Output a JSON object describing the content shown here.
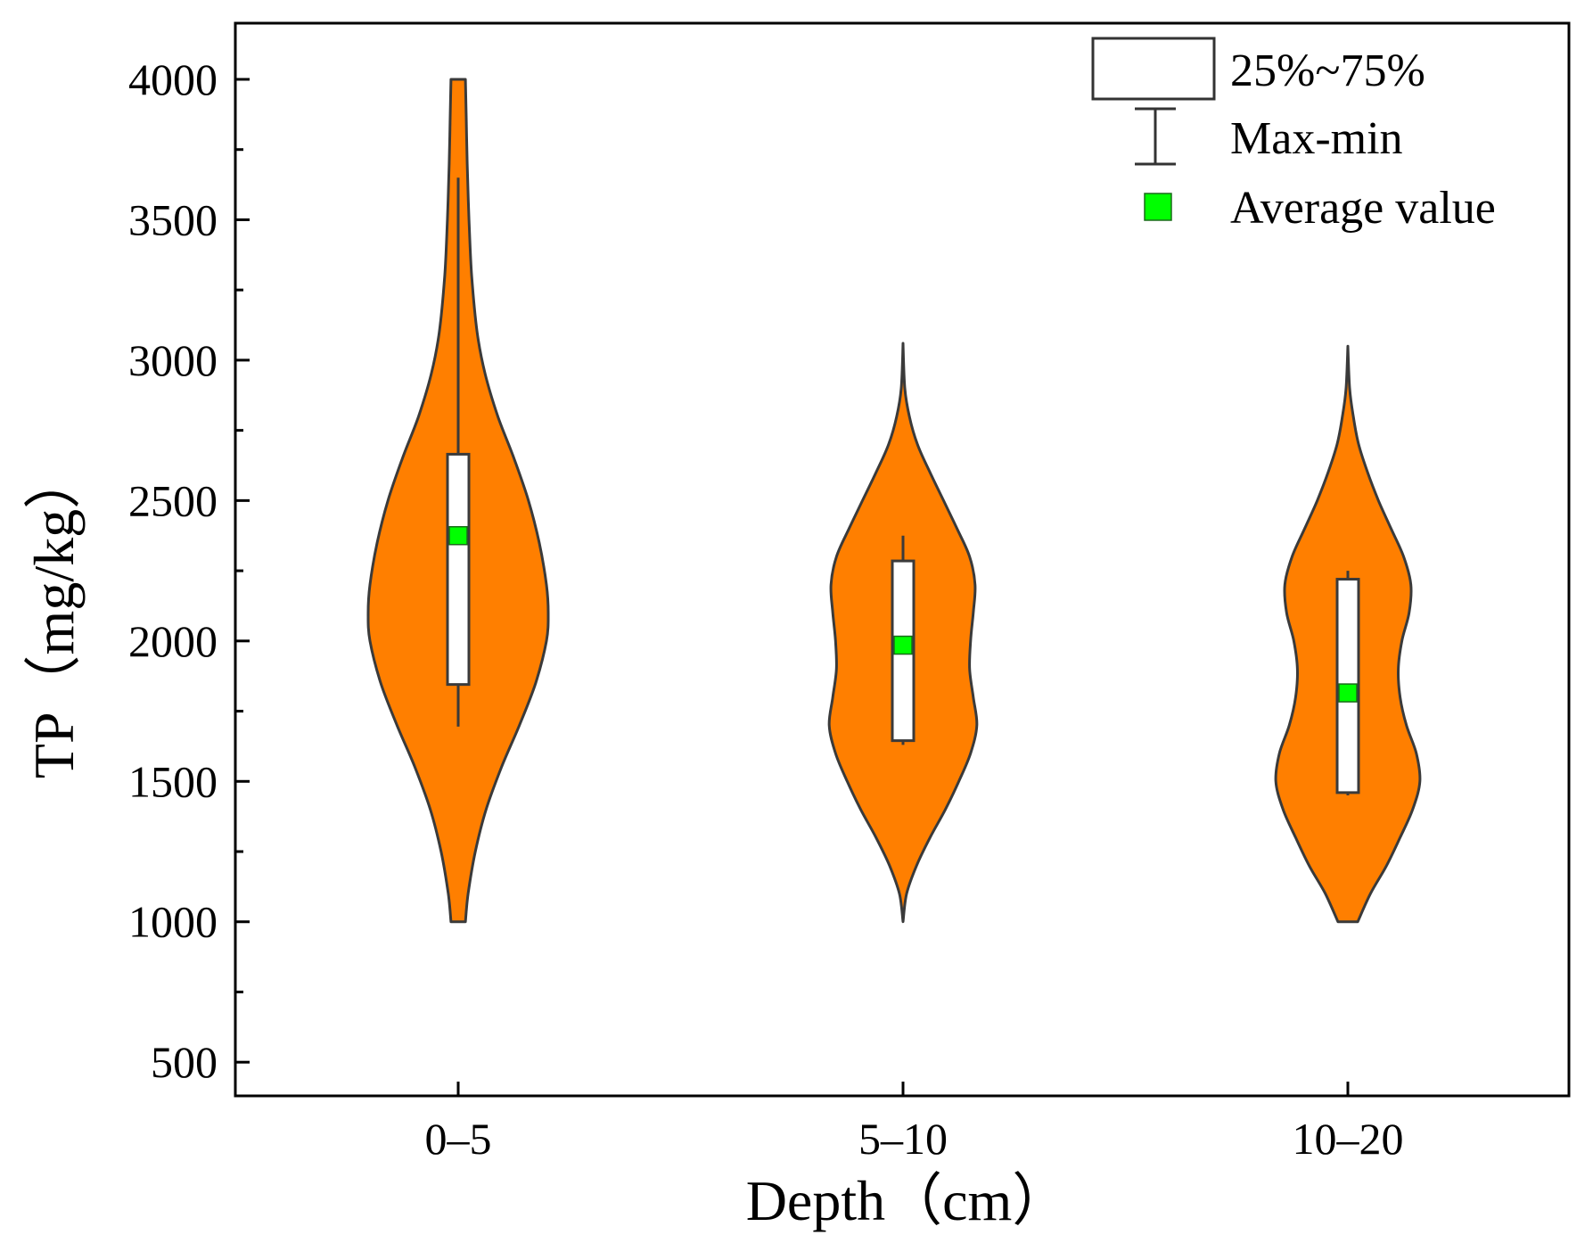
{
  "chart_data": {
    "type": "violin",
    "categories": [
      "0–5",
      "5–10",
      "10–20"
    ],
    "xlabel": "Depth（cm）",
    "ylabel": "TP（mg/kg）",
    "ylim": [
      380,
      4200
    ],
    "y_ticks": [
      500,
      1000,
      1500,
      2000,
      2500,
      3000,
      3500,
      4000
    ],
    "y_tick_labels": [
      "500",
      "1000",
      "1500",
      "2000",
      "2500",
      "3000",
      "3500",
      "4000"
    ],
    "series": [
      {
        "name": "0–5",
        "q1": 1845,
        "q3": 2665,
        "min": 1695,
        "max": 3650,
        "mean": 2375,
        "density": [
          [
            1000,
            0.08
          ],
          [
            1100,
            0.11
          ],
          [
            1250,
            0.19
          ],
          [
            1400,
            0.31
          ],
          [
            1550,
            0.48
          ],
          [
            1700,
            0.68
          ],
          [
            1850,
            0.86
          ],
          [
            2000,
            0.98
          ],
          [
            2100,
            1.0
          ],
          [
            2200,
            0.98
          ],
          [
            2350,
            0.9
          ],
          [
            2500,
            0.78
          ],
          [
            2650,
            0.62
          ],
          [
            2800,
            0.44
          ],
          [
            2950,
            0.3
          ],
          [
            3100,
            0.21
          ],
          [
            3300,
            0.15
          ],
          [
            3500,
            0.12
          ],
          [
            3700,
            0.1
          ],
          [
            3850,
            0.09
          ],
          [
            4000,
            0.08
          ]
        ]
      },
      {
        "name": "5–10",
        "q1": 1645,
        "q3": 2285,
        "min": 1630,
        "max": 2375,
        "mean": 1985,
        "density": [
          [
            1000,
            0.0
          ],
          [
            1100,
            0.04
          ],
          [
            1200,
            0.15
          ],
          [
            1300,
            0.3
          ],
          [
            1400,
            0.47
          ],
          [
            1500,
            0.62
          ],
          [
            1600,
            0.75
          ],
          [
            1700,
            0.82
          ],
          [
            1800,
            0.78
          ],
          [
            1900,
            0.74
          ],
          [
            2000,
            0.75
          ],
          [
            2100,
            0.78
          ],
          [
            2200,
            0.8
          ],
          [
            2300,
            0.74
          ],
          [
            2400,
            0.6
          ],
          [
            2500,
            0.45
          ],
          [
            2600,
            0.3
          ],
          [
            2700,
            0.16
          ],
          [
            2800,
            0.07
          ],
          [
            2900,
            0.02
          ],
          [
            3060,
            0.0
          ]
        ]
      },
      {
        "name": "10–20",
        "q1": 1460,
        "q3": 2220,
        "min": 1450,
        "max": 2250,
        "mean": 1815,
        "density": [
          [
            1000,
            0.11
          ],
          [
            1100,
            0.25
          ],
          [
            1200,
            0.43
          ],
          [
            1300,
            0.58
          ],
          [
            1400,
            0.72
          ],
          [
            1500,
            0.8
          ],
          [
            1600,
            0.76
          ],
          [
            1700,
            0.65
          ],
          [
            1800,
            0.58
          ],
          [
            1900,
            0.56
          ],
          [
            2000,
            0.6
          ],
          [
            2100,
            0.68
          ],
          [
            2200,
            0.7
          ],
          [
            2300,
            0.62
          ],
          [
            2400,
            0.48
          ],
          [
            2500,
            0.34
          ],
          [
            2600,
            0.22
          ],
          [
            2700,
            0.12
          ],
          [
            2800,
            0.06
          ],
          [
            2900,
            0.02
          ],
          [
            3050,
            0.0
          ]
        ]
      }
    ],
    "legend": {
      "position": "top-right",
      "items": [
        {
          "name": "box",
          "label": "25%~75%"
        },
        {
          "name": "whisker",
          "label": "Max-min"
        },
        {
          "name": "mean",
          "label": "Average value"
        }
      ]
    },
    "colors": {
      "violin_fill": "#ff7f00",
      "violin_stroke": "#3a3a3a",
      "box_fill": "#ffffff",
      "mean_fill": "#00ff00",
      "axis": "#000000"
    }
  }
}
